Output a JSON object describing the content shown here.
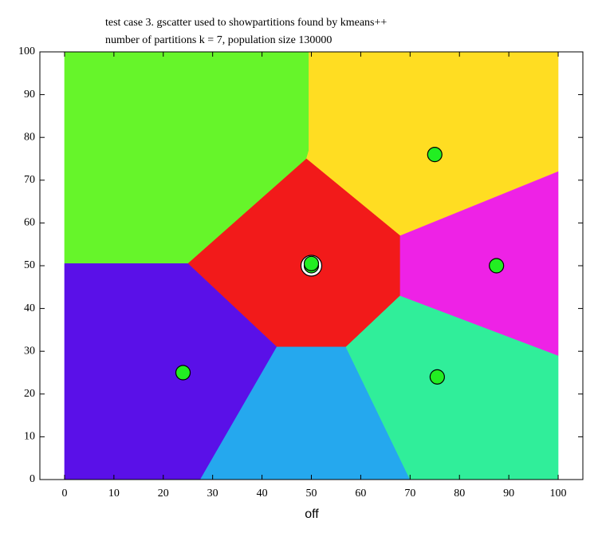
{
  "chart_data": {
    "type": "scatter",
    "title": "test case 3. gscatter used to showpartitions found by kmeans++",
    "subtitle": "number of partitions k = 7, population size 130000",
    "x_label": "off",
    "xlim": [
      -5,
      105
    ],
    "ylim": [
      0,
      100
    ],
    "xticks": [
      0,
      10,
      20,
      30,
      40,
      50,
      60,
      70,
      80,
      90,
      100
    ],
    "yticks": [
      0,
      10,
      20,
      30,
      40,
      50,
      60,
      70,
      80,
      90,
      100
    ],
    "regions": [
      {
        "color": "#66f52a",
        "x": [
          0,
          49.5,
          49.5,
          49,
          25,
          0
        ],
        "values": [
          100,
          100,
          77,
          75,
          50.5,
          50.5
        ]
      },
      {
        "color": "#ffdd22",
        "x": [
          49.5,
          100,
          100,
          68,
          49,
          49.5
        ],
        "values": [
          100,
          100,
          72,
          57,
          75,
          77
        ]
      },
      {
        "color": "#f21a1a",
        "x": [
          25,
          49,
          68,
          68,
          57,
          43
        ],
        "values": [
          50.5,
          75,
          57,
          43,
          31,
          31
        ]
      },
      {
        "color": "#5a10e8",
        "x": [
          0,
          25,
          43,
          27.5,
          0
        ],
        "values": [
          50.5,
          50.5,
          31,
          0,
          0
        ]
      },
      {
        "color": "#25a8ee",
        "x": [
          43,
          57,
          70,
          27.5
        ],
        "values": [
          31,
          31,
          0,
          0
        ]
      },
      {
        "color": "#30ee9a",
        "x": [
          57,
          68,
          100,
          100,
          70
        ],
        "values": [
          31,
          43,
          29,
          0,
          0
        ]
      },
      {
        "color": "#ee22e6",
        "x": [
          68,
          100,
          100,
          68
        ],
        "values": [
          57,
          72,
          29,
          43
        ]
      }
    ],
    "centroids": {
      "color": "#22ee22",
      "x": [
        24,
        75,
        87.5,
        75.5,
        50,
        50
      ],
      "values": [
        25,
        76,
        50,
        24,
        50,
        50.5
      ]
    },
    "highlight": {
      "color": "#ffffff",
      "x": 50,
      "value": 50
    }
  }
}
